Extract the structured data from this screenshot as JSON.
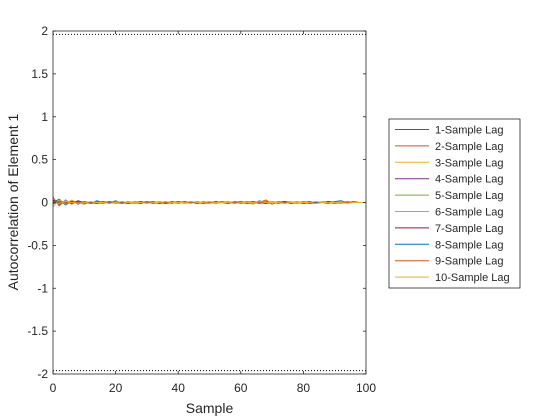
{
  "chart_data": {
    "type": "line",
    "title": "",
    "xlabel": "Sample",
    "ylabel": "Autocorrelation of Element 1",
    "xlim": [
      0,
      100
    ],
    "ylim": [
      -2,
      2
    ],
    "xticks": [
      "0",
      "20",
      "40",
      "60",
      "80",
      "100"
    ],
    "yticks": [
      "2",
      "1.5",
      "1",
      "0.5",
      "0",
      "-0.5",
      "-1",
      "-1.5",
      "-2"
    ],
    "grid": false,
    "legend_position": "right",
    "confidence_bounds": [
      1.96,
      -1.96
    ],
    "x": [
      0,
      2,
      4,
      6,
      8,
      10,
      12,
      14,
      16,
      18,
      20,
      22,
      24,
      26,
      28,
      30,
      32,
      34,
      36,
      38,
      40,
      42,
      44,
      46,
      48,
      50,
      52,
      54,
      56,
      58,
      60,
      62,
      64,
      66,
      68,
      70,
      72,
      74,
      76,
      78,
      80,
      82,
      84,
      86,
      88,
      90,
      92,
      94,
      96,
      98,
      100
    ],
    "series": [
      {
        "name": "1-Sample Lag",
        "color": "#0072BD",
        "values": [
          0,
          0.04,
          -0.03,
          0.02,
          -0.02,
          0.01,
          -0.01,
          0.02,
          0,
          -0.01,
          0.02,
          -0.01,
          0.01,
          -0.01,
          0,
          0.01,
          -0.01,
          0,
          0.01,
          -0.01,
          0.01,
          0,
          -0.01,
          0.01,
          0,
          -0.01,
          0.01,
          0,
          -0.01,
          0.01,
          0,
          0.01,
          -0.01,
          0.02,
          -0.01,
          0.01,
          0,
          -0.01,
          0,
          0.01,
          -0.01,
          0,
          0.01,
          0,
          -0.01,
          0.01,
          0.02,
          0,
          0.01,
          0,
          0
        ]
      },
      {
        "name": "2-Sample Lag",
        "color": "#D95319",
        "values": [
          0.06,
          -0.04,
          0.03,
          -0.02,
          0.02,
          -0.01,
          0,
          0.01,
          -0.01,
          0.01,
          0,
          -0.01,
          0.01,
          0,
          -0.01,
          0.01,
          0,
          -0.01,
          0,
          0.01,
          -0.01,
          0.01,
          0,
          -0.01,
          0.01,
          0,
          -0.01,
          0,
          0.01,
          -0.01,
          0,
          -0.01,
          0.01,
          0,
          0.03,
          -0.02,
          0.01,
          0,
          -0.01,
          0,
          0.01,
          0,
          -0.01,
          0,
          0.01,
          0,
          0,
          0.01,
          0,
          0,
          0
        ]
      },
      {
        "name": "3-Sample Lag",
        "color": "#EDB120",
        "values": [
          -0.05,
          0.03,
          -0.02,
          0.03,
          -0.01,
          0.01,
          0,
          -0.01,
          0.01,
          0,
          -0.01,
          0.01,
          0,
          -0.01,
          0.01,
          0,
          0,
          0.01,
          -0.01,
          0,
          0.01,
          -0.01,
          0,
          0.01,
          0,
          -0.01,
          0,
          0.01,
          0,
          -0.01,
          0.01,
          0,
          -0.02,
          0.01,
          0,
          0.01,
          -0.01,
          0,
          0.01,
          0,
          -0.01,
          0,
          0,
          0.01,
          0,
          -0.01,
          0,
          0,
          0,
          0,
          0
        ]
      },
      {
        "name": "4-Sample Lag",
        "color": "#7E2F8E",
        "values": [
          0.02,
          -0.02,
          0.01,
          -0.01,
          0.02,
          0,
          -0.01,
          0,
          0.01,
          -0.01,
          0,
          0.01,
          0,
          0,
          -0.01,
          0,
          0.01,
          0,
          -0.01,
          0,
          0,
          0.01,
          0,
          -0.01,
          0,
          0.01,
          0,
          0,
          -0.01,
          0,
          0.01,
          0,
          0,
          -0.01,
          0.01,
          0,
          0,
          0.01,
          0,
          0,
          -0.01,
          0,
          0,
          0,
          0.01,
          0,
          0,
          0,
          0,
          0,
          0
        ]
      },
      {
        "name": "5-Sample Lag",
        "color": "#77AC30",
        "values": [
          -0.02,
          0.02,
          -0.01,
          0.01,
          0,
          -0.02,
          0.01,
          0,
          -0.01,
          0,
          0.01,
          0,
          -0.01,
          0.01,
          0,
          0,
          -0.01,
          0.01,
          0,
          0,
          -0.01,
          0,
          0.01,
          0,
          -0.01,
          0,
          0,
          0.01,
          0,
          -0.01,
          0,
          0.01,
          0,
          0,
          -0.01,
          0,
          0.01,
          0,
          0,
          -0.01,
          0,
          0.01,
          0,
          0,
          0,
          0,
          -0.01,
          0,
          0,
          0,
          0
        ]
      },
      {
        "name": "6-Sample Lag",
        "color": "#4DBEEE",
        "values": [
          0.01,
          -0.01,
          0.02,
          -0.01,
          0,
          0.01,
          -0.01,
          0,
          0.01,
          0,
          -0.01,
          0,
          0.01,
          0,
          0,
          -0.01,
          0,
          0.01,
          0,
          0,
          0,
          -0.01,
          0,
          0.01,
          0,
          0,
          -0.01,
          0,
          0.01,
          0,
          0,
          0,
          -0.01,
          0,
          0.01,
          0,
          0,
          0,
          0,
          0.01,
          0,
          0,
          -0.01,
          0,
          0,
          0,
          0.01,
          0,
          0,
          0,
          0
        ]
      },
      {
        "name": "7-Sample Lag",
        "color": "#A2142F",
        "values": [
          0.03,
          -0.01,
          0,
          0.01,
          -0.01,
          0.01,
          0,
          -0.01,
          0,
          0.01,
          0,
          0,
          -0.01,
          0,
          0.01,
          0,
          0,
          -0.01,
          0,
          0,
          0.01,
          0,
          0,
          -0.01,
          0,
          0,
          0.01,
          0,
          0,
          -0.01,
          0,
          0,
          0.01,
          0,
          -0.01,
          0,
          0,
          0.01,
          0,
          0,
          0,
          -0.01,
          0,
          0,
          0.01,
          0,
          0,
          0,
          0,
          0,
          0
        ]
      },
      {
        "name": "8-Sample Lag",
        "color": "#0072BD",
        "values": [
          -0.01,
          0,
          0.01,
          -0.01,
          0.01,
          0,
          0,
          -0.01,
          0.01,
          0,
          0,
          0,
          -0.01,
          0,
          0.01,
          0,
          0,
          0,
          -0.01,
          0.01,
          0,
          0,
          0,
          0,
          -0.01,
          0,
          0.01,
          0,
          0,
          0,
          0,
          -0.01,
          0,
          0.01,
          0,
          0,
          0,
          0,
          -0.01,
          0,
          0,
          0.01,
          0,
          0,
          0,
          0,
          0,
          0,
          0,
          0,
          0
        ]
      },
      {
        "name": "9-Sample Lag",
        "color": "#D95319",
        "values": [
          0.01,
          0.01,
          -0.01,
          0,
          0,
          0.01,
          -0.01,
          0,
          0,
          0.01,
          0,
          -0.01,
          0,
          0,
          0.01,
          0,
          -0.01,
          0,
          0,
          0,
          0.01,
          0,
          0,
          -0.01,
          0,
          0,
          0,
          0.01,
          0,
          0,
          -0.01,
          0,
          0,
          0,
          0.01,
          0,
          -0.01,
          0,
          0,
          0,
          0,
          0,
          0.01,
          0,
          0,
          -0.01,
          0,
          0,
          0,
          0,
          0
        ]
      },
      {
        "name": "10-Sample Lag",
        "color": "#EDB120",
        "values": [
          0,
          -0.01,
          0.01,
          0,
          -0.01,
          0,
          0.01,
          0,
          0,
          -0.01,
          0,
          0.01,
          0,
          0,
          0,
          -0.01,
          0,
          0,
          0.01,
          0,
          0,
          0,
          -0.01,
          0,
          0,
          0.01,
          0,
          0,
          0,
          -0.01,
          0,
          0,
          0,
          0.01,
          0,
          0,
          0,
          -0.01,
          0,
          0,
          0,
          0,
          0.01,
          0,
          0,
          0,
          0,
          -0.01,
          0,
          0,
          0
        ]
      }
    ]
  }
}
